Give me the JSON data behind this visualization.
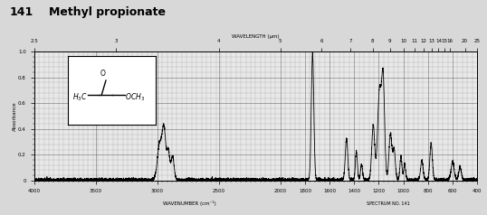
{
  "title_number": "141",
  "title_name": "Methyl propionate",
  "top_axis_label": "WAVELENGTH (μm)",
  "bottom_axis_label_left": "WAVENUMBER (cm⁻¹)",
  "bottom_axis_label_right": "SPECTRUM NO. 141",
  "ylabel": "Absorbance",
  "background_color": "#d8d8d8",
  "plot_bg_color": "#e8e8e8",
  "grid_color": "#555555",
  "spectrum_color": "#000000",
  "top_ticks_micron": [
    2.5,
    3,
    4,
    5,
    6,
    7,
    8,
    9,
    10,
    11,
    12,
    13,
    14,
    15,
    16,
    20,
    25
  ],
  "bottom_ticks_wavenumber": [
    4000,
    3500,
    3000,
    2500,
    2000,
    1800,
    1600,
    1400,
    1200,
    1000,
    800,
    600,
    400
  ],
  "xlim_wavenumber": [
    4000,
    400
  ],
  "ylim": [
    0,
    1.0
  ],
  "yticks": [
    0.0,
    0.2,
    0.4,
    0.6,
    0.8,
    1.0
  ],
  "title_fontsize": 9,
  "title_number_fontsize": 9
}
